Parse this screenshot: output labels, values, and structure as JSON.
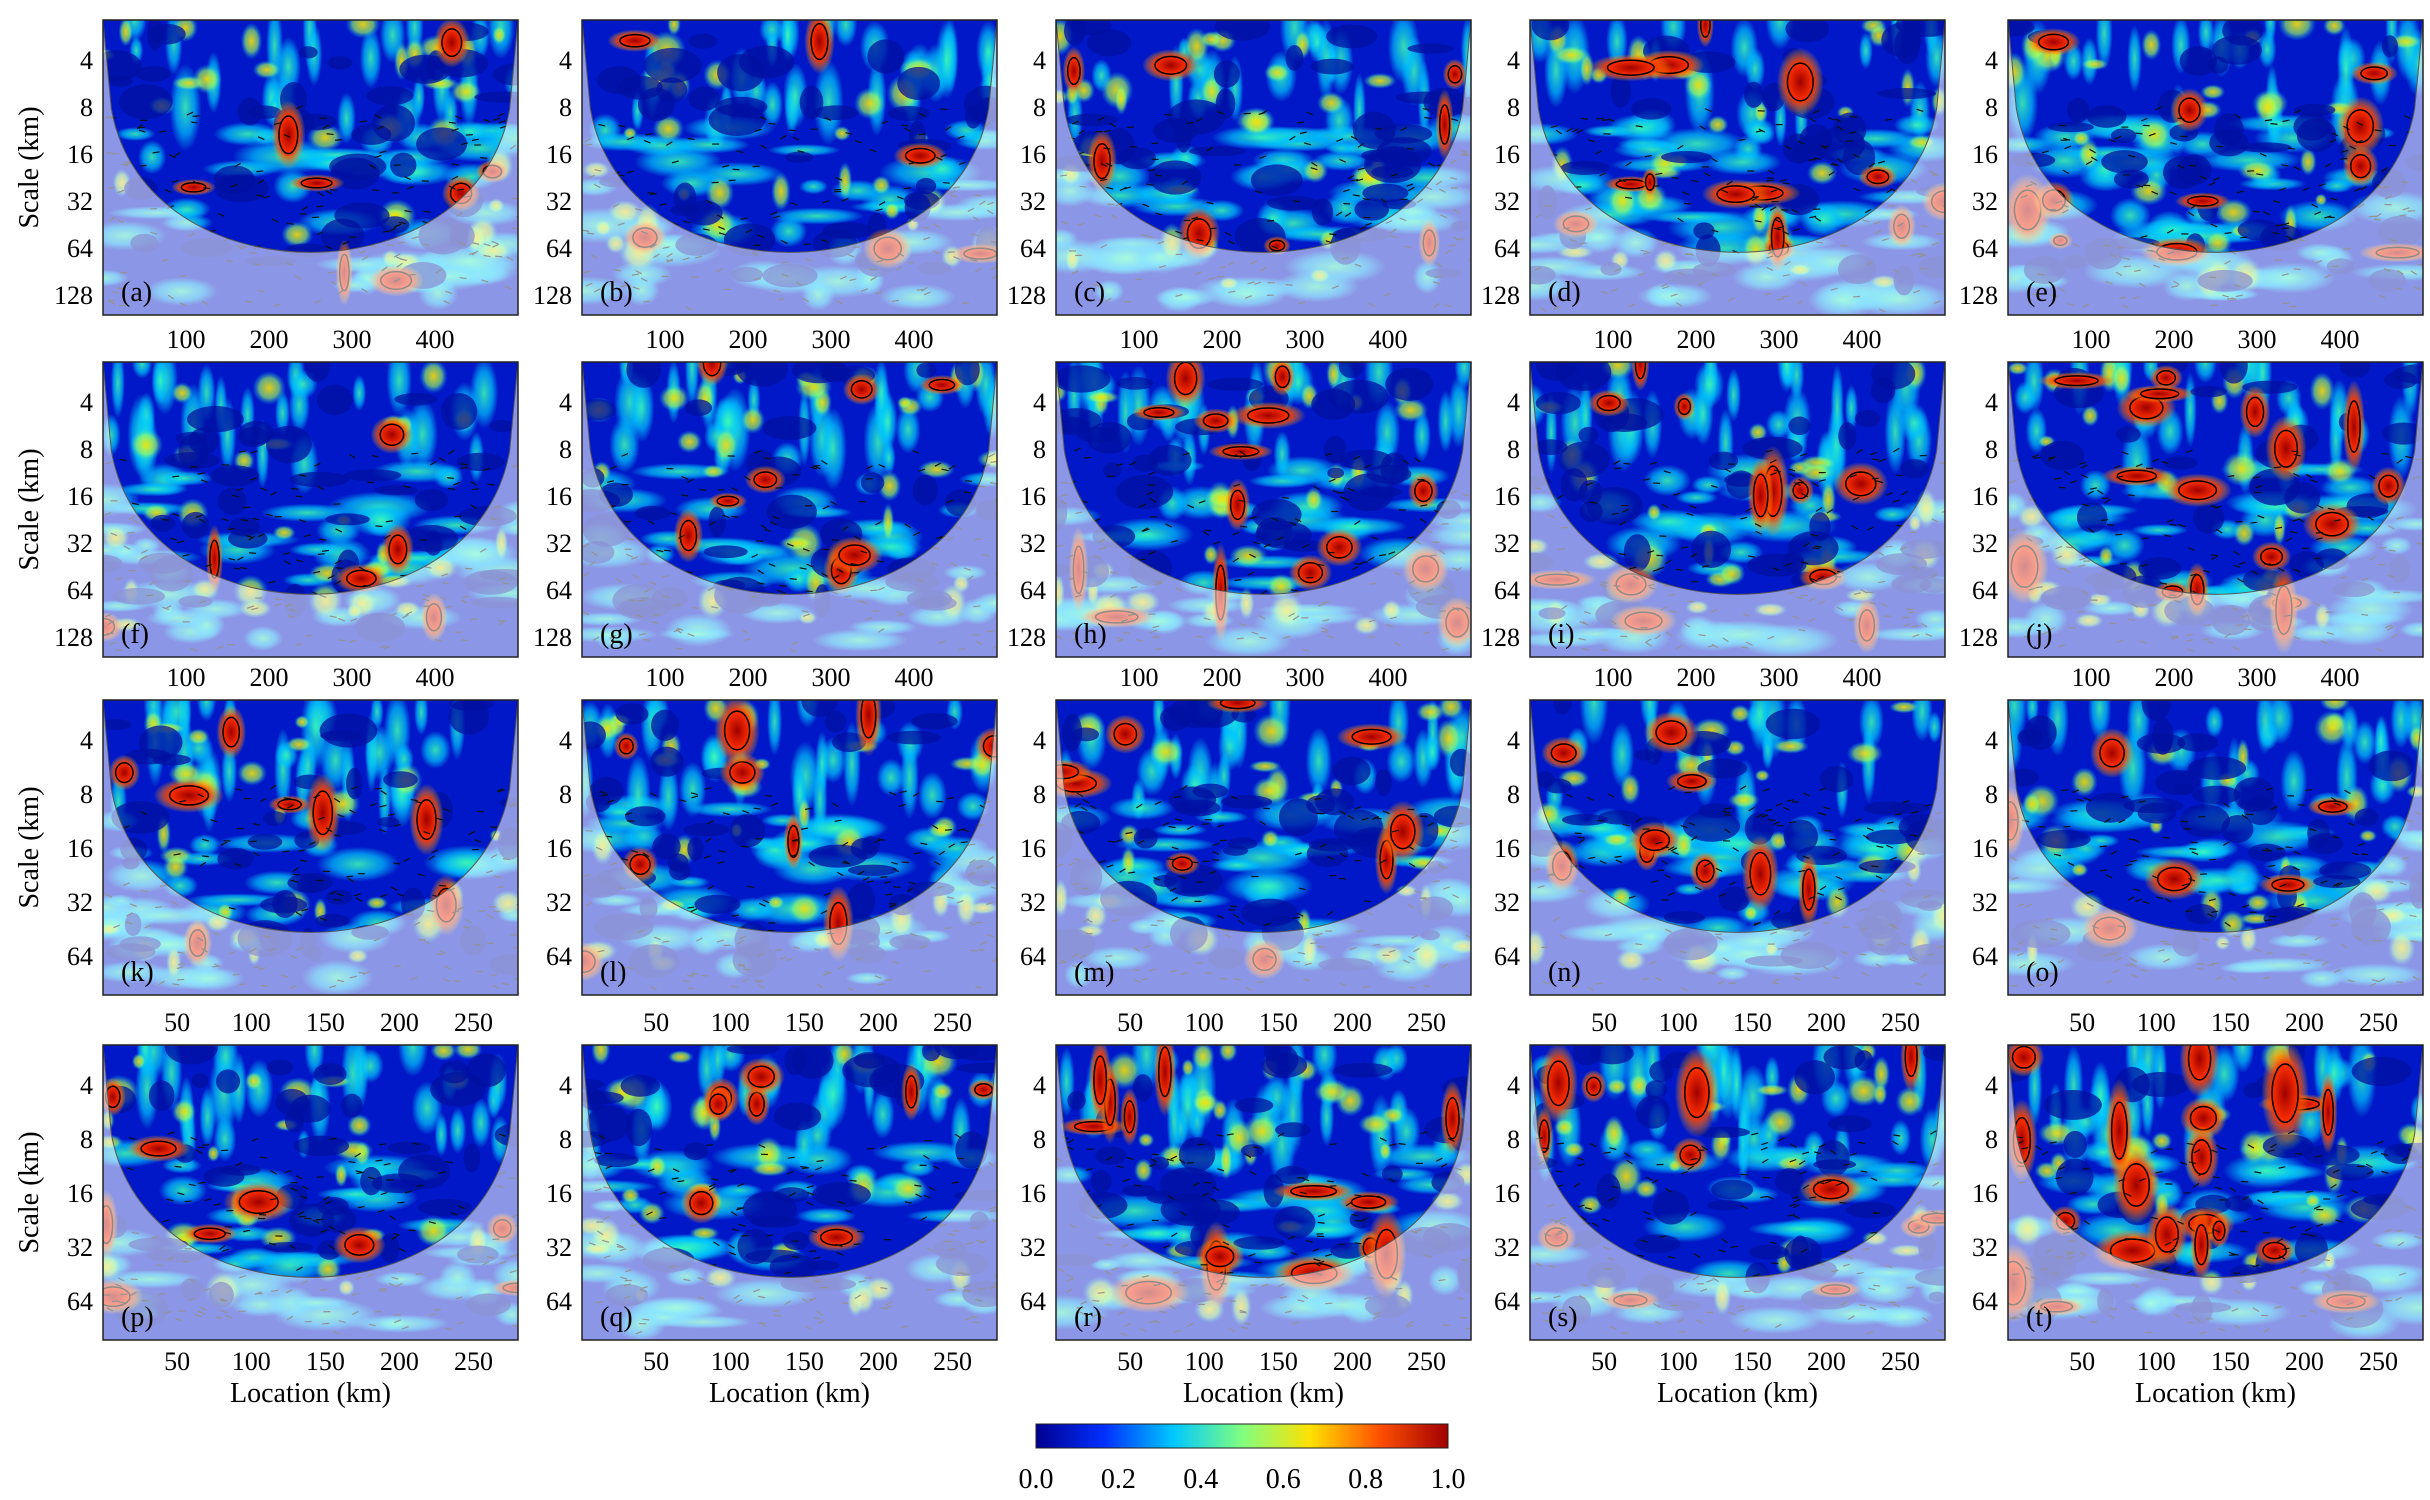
{
  "chart_data": {
    "type": "heatmap",
    "description_kind": "wavelet coherence grid",
    "colorbar": {
      "min": 0.0,
      "max": 1.0,
      "ticks": [
        "0.0",
        "0.2",
        "0.4",
        "0.6",
        "0.8",
        "1.0"
      ],
      "stops": [
        "#00008f",
        "#0030ff",
        "#00c8ff",
        "#80ff80",
        "#ffe000",
        "#ff5000",
        "#a00000"
      ]
    },
    "x_axis_label": "Location (km)",
    "y_axis_label": "Scale (km)",
    "rows": [
      {
        "panels": [
          "(a)",
          "(b)",
          "(c)",
          "(d)",
          "(e)"
        ],
        "y_ticks": [
          "4",
          "8",
          "16",
          "32",
          "64",
          "128"
        ],
        "x_ticks": [],
        "x_range": [
          0,
          500
        ],
        "coherence_level": [
          0.15,
          0.1,
          0.15,
          0.35,
          0.25
        ]
      },
      {
        "panels": [
          "(f)",
          "(g)",
          "(h)",
          "(i)",
          "(j)"
        ],
        "y_ticks": [
          "4",
          "8",
          "16",
          "32",
          "64",
          "128"
        ],
        "x_ticks_above": [
          [
            "",
            "100",
            "200",
            "300",
            "400"
          ],
          [
            "100",
            "200",
            "300",
            "400"
          ],
          [
            "100",
            "200",
            "300",
            "400"
          ],
          [
            "100",
            "200",
            "300",
            "400"
          ],
          [
            "100",
            "200",
            "300",
            "400"
          ]
        ],
        "x_range": [
          0,
          500
        ],
        "coherence_level": [
          0.1,
          0.15,
          0.4,
          0.3,
          0.45
        ]
      },
      {
        "panels": [
          "(k)",
          "(l)",
          "(m)",
          "(n)",
          "(o)"
        ],
        "y_ticks": [
          "4",
          "8",
          "16",
          "32",
          "64"
        ],
        "x_ticks_above": [
          [
            "100",
            "200",
            "300",
            "400"
          ],
          [
            "100",
            "200",
            "300",
            "400"
          ],
          [
            "100",
            "200",
            "300",
            "400"
          ],
          [
            "100",
            "200",
            "300",
            "400"
          ],
          [
            "100",
            "200",
            "300",
            "400"
          ]
        ],
        "x_range": [
          0,
          280
        ],
        "coherence_level": [
          0.15,
          0.2,
          0.2,
          0.2,
          0.1
        ]
      },
      {
        "panels": [
          "(p)",
          "(q)",
          "(r)",
          "(s)",
          "(t)"
        ],
        "y_ticks": [
          "4",
          "8",
          "16",
          "32",
          "64"
        ],
        "x_ticks_above": [
          [
            "50",
            "100",
            "150",
            "200",
            "250"
          ],
          [
            "50",
            "100",
            "150",
            "200",
            "250"
          ],
          [
            "50",
            "100",
            "150",
            "200",
            "250"
          ],
          [
            "50",
            "100",
            "150",
            "200",
            "250"
          ],
          [
            "50",
            "100",
            "150",
            "200",
            "250"
          ]
        ],
        "x_ticks_below": [
          "50",
          "100",
          "150",
          "200",
          "250"
        ],
        "x_range": [
          0,
          280
        ],
        "coherence_level": [
          0.2,
          0.15,
          0.35,
          0.3,
          0.55
        ]
      }
    ]
  }
}
